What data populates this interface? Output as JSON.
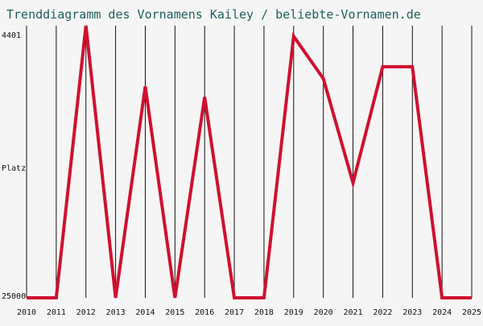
{
  "chart_data": {
    "type": "line",
    "title": "Trenddiagramm des Vornamens Kailey / beliebte-Vornamen.de",
    "xlabel": "",
    "ylabel": "Platz",
    "y_axis_labels": {
      "top": "4401",
      "bottom": "25000"
    },
    "ylim": [
      25000,
      4401
    ],
    "categories": [
      "2010",
      "2011",
      "2012",
      "2013",
      "2014",
      "2015",
      "2016",
      "2017",
      "2018",
      "2019",
      "2020",
      "2021",
      "2022",
      "2023",
      "2024",
      "2025"
    ],
    "series": [
      {
        "values": [
          25000,
          25000,
          4401,
          25000,
          9000,
          25000,
          9800,
          25000,
          25000,
          5200,
          8400,
          16300,
          7500,
          7500,
          25000,
          25000
        ]
      }
    ],
    "grid": true,
    "legend": "none"
  },
  "colors": {
    "line": "#d0102f",
    "grid": "#111111",
    "title": "#1f5f5a",
    "background": "#f5f5f5"
  }
}
